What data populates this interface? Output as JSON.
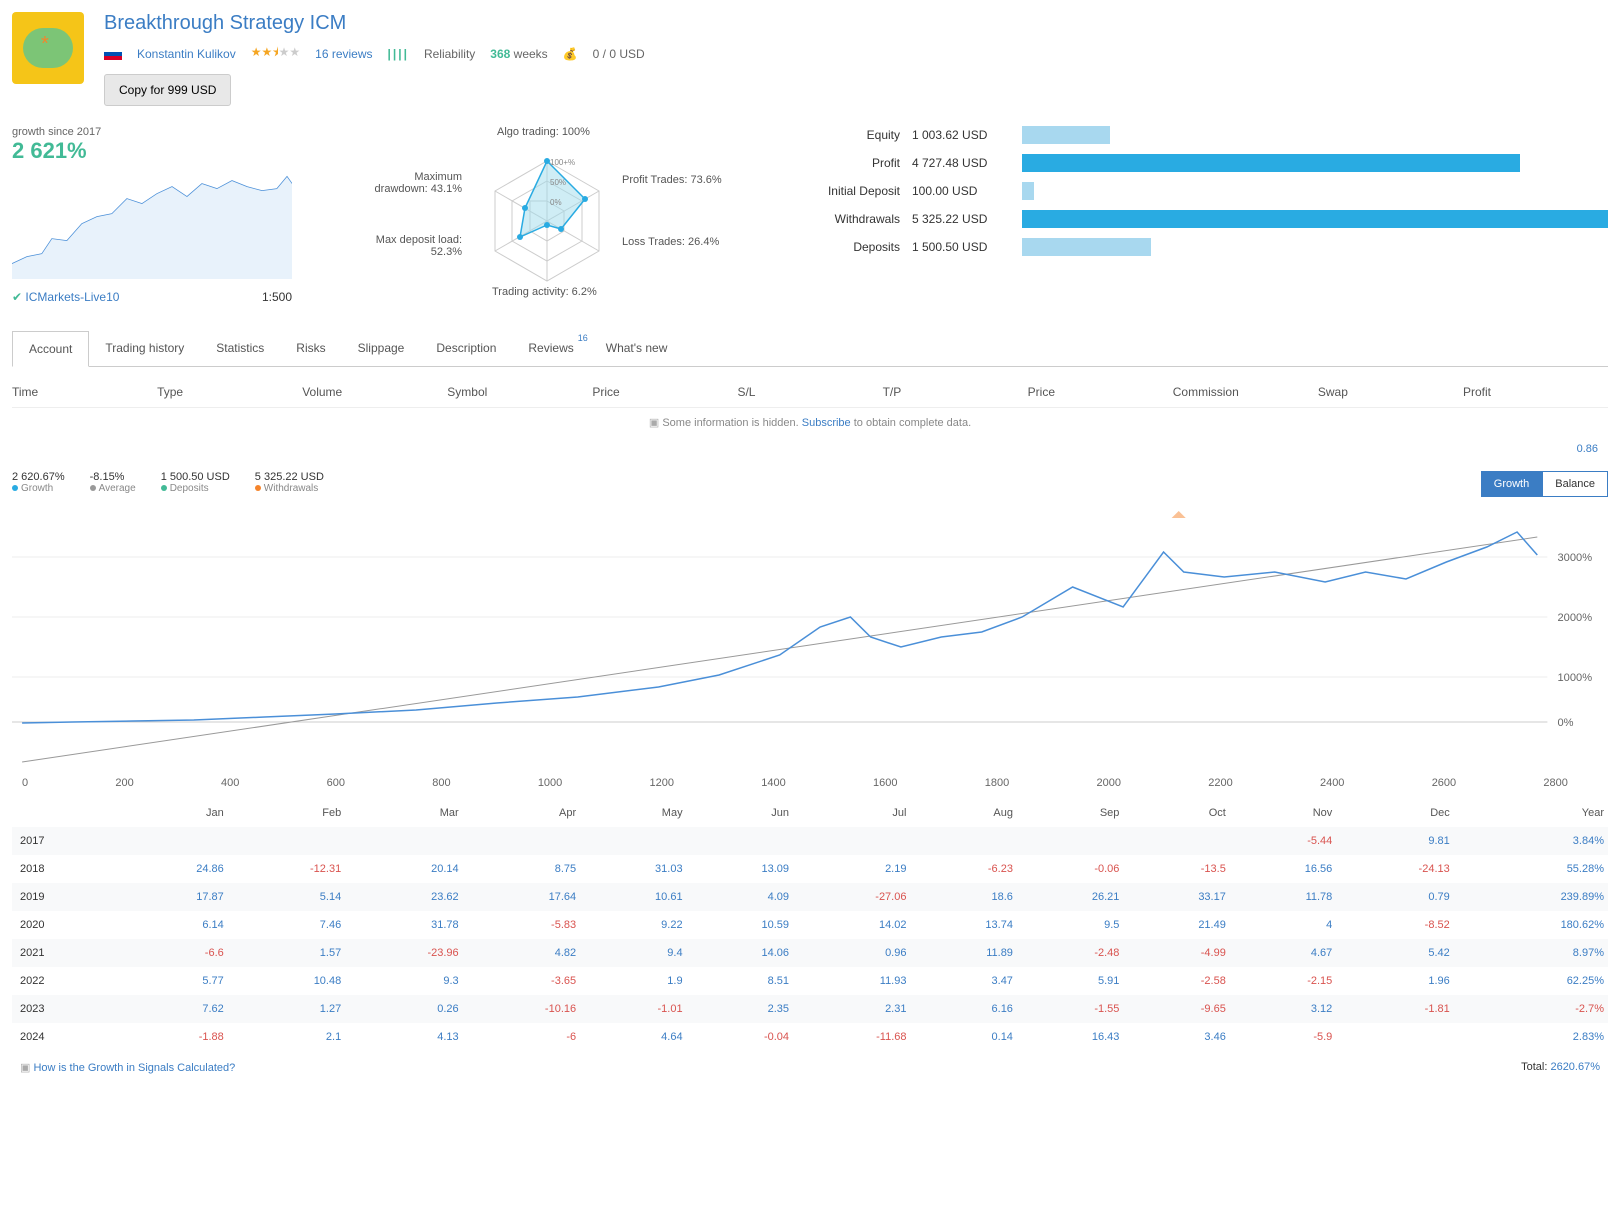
{
  "header": {
    "title": "Breakthrough Strategy ICM",
    "author": "Konstantin Kulikov",
    "reviews_count": "16 reviews",
    "reliability_label": "Reliability",
    "weeks_value": "368",
    "weeks_label": "weeks",
    "balance_info": "0 / 0 USD",
    "copy_button": "Copy for 999 USD"
  },
  "growth": {
    "label": "growth since 2017",
    "value": "2 621%",
    "broker": "ICMarkets-Live10",
    "leverage": "1:500"
  },
  "radar": {
    "labels": {
      "algo": "Algo trading: 100%",
      "profit": "Profit Trades: 73.6%",
      "loss": "Loss Trades: 26.4%",
      "activity": "Trading activity: 6.2%",
      "deposit_load": "Max deposit load: 52.3%",
      "drawdown": "Maximum drawdown: 43.1%"
    },
    "rings": [
      "0%",
      "50%",
      "100%"
    ]
  },
  "stats": {
    "rows": [
      {
        "label": "Equity",
        "value": "1 003.62 USD",
        "bar_pct": 15,
        "color": "#a8d8ef"
      },
      {
        "label": "Profit",
        "value": "4 727.48 USD",
        "bar_pct": 85,
        "color": "#29abe2"
      },
      {
        "label": "Initial Deposit",
        "value": "100.00 USD",
        "bar_pct": 2,
        "color": "#a8d8ef"
      },
      {
        "label": "Withdrawals",
        "value": "5 325.22 USD",
        "bar_pct": 100,
        "color": "#29abe2"
      },
      {
        "label": "Deposits",
        "value": "1 500.50 USD",
        "bar_pct": 22,
        "color": "#a8d8ef"
      }
    ]
  },
  "tabs": [
    "Account",
    "Trading history",
    "Statistics",
    "Risks",
    "Slippage",
    "Description",
    "Reviews",
    "What's new"
  ],
  "tab_badge": "16",
  "table_columns": [
    "Time",
    "Type",
    "Volume",
    "Symbol",
    "Price",
    "S/L",
    "T/P",
    "Price",
    "Commission",
    "Swap",
    "Profit"
  ],
  "hidden_info": {
    "prefix": "Some information is hidden. ",
    "link": "Subscribe",
    "suffix": " to obtain complete data."
  },
  "val_086": "0.86",
  "chart_legend": [
    {
      "value": "2 620.67%",
      "label": "Growth",
      "dot": "#29abe2"
    },
    {
      "value": "-8.15%",
      "label": "Average",
      "dot": "#999"
    },
    {
      "value": "1 500.50 USD",
      "label": "Deposits",
      "dot": "#42ba96"
    },
    {
      "value": "5 325.22 USD",
      "label": "Withdrawals",
      "dot": "#f5842b"
    }
  ],
  "chart_toggle": {
    "growth": "Growth",
    "balance": "Balance"
  },
  "main_chart": {
    "y_ticks": [
      "3000%",
      "2000%",
      "1000%",
      "0%"
    ],
    "x_ticks": [
      "0",
      "200",
      "400",
      "600",
      "800",
      "1000",
      "1200",
      "1400",
      "1600",
      "1800",
      "2000",
      "2200",
      "2400",
      "2600",
      "2800"
    ],
    "line_color": "#4a8fd8",
    "avg_color": "#999",
    "marker_x": 930
  },
  "monthly": {
    "months": [
      "Jan",
      "Feb",
      "Mar",
      "Apr",
      "May",
      "Jun",
      "Jul",
      "Aug",
      "Sep",
      "Oct",
      "Nov",
      "Dec",
      "Year"
    ],
    "rows": [
      {
        "year": "2017",
        "vals": [
          "",
          "",
          "",
          "",
          "",
          "",
          "",
          "",
          "",
          "",
          "-5.44",
          "9.81",
          "3.84%"
        ]
      },
      {
        "year": "2018",
        "vals": [
          "24.86",
          "-12.31",
          "20.14",
          "8.75",
          "31.03",
          "13.09",
          "2.19",
          "-6.23",
          "-0.06",
          "-13.5",
          "16.56",
          "-24.13",
          "55.28%"
        ]
      },
      {
        "year": "2019",
        "vals": [
          "17.87",
          "5.14",
          "23.62",
          "17.64",
          "10.61",
          "4.09",
          "-27.06",
          "18.6",
          "26.21",
          "33.17",
          "11.78",
          "0.79",
          "239.89%"
        ]
      },
      {
        "year": "2020",
        "vals": [
          "6.14",
          "7.46",
          "31.78",
          "-5.83",
          "9.22",
          "10.59",
          "14.02",
          "13.74",
          "9.5",
          "21.49",
          "4",
          "-8.52",
          "180.62%"
        ]
      },
      {
        "year": "2021",
        "vals": [
          "-6.6",
          "1.57",
          "-23.96",
          "4.82",
          "9.4",
          "14.06",
          "0.96",
          "11.89",
          "-2.48",
          "-4.99",
          "4.67",
          "5.42",
          "8.97%"
        ]
      },
      {
        "year": "2022",
        "vals": [
          "5.77",
          "10.48",
          "9.3",
          "-3.65",
          "1.9",
          "8.51",
          "11.93",
          "3.47",
          "5.91",
          "-2.58",
          "-2.15",
          "1.96",
          "62.25%"
        ]
      },
      {
        "year": "2023",
        "vals": [
          "7.62",
          "1.27",
          "0.26",
          "-10.16",
          "-1.01",
          "2.35",
          "2.31",
          "6.16",
          "-1.55",
          "-9.65",
          "3.12",
          "-1.81",
          "-2.7%"
        ]
      },
      {
        "year": "2024",
        "vals": [
          "-1.88",
          "2.1",
          "4.13",
          "-6",
          "4.64",
          "-0.04",
          "-11.68",
          "0.14",
          "16.43",
          "3.46",
          "-5.9",
          "",
          "2.83%"
        ]
      }
    ]
  },
  "footer": {
    "link": "How is the Growth in Signals Calculated?",
    "total_label": "Total:",
    "total_value": "2620.67%"
  }
}
